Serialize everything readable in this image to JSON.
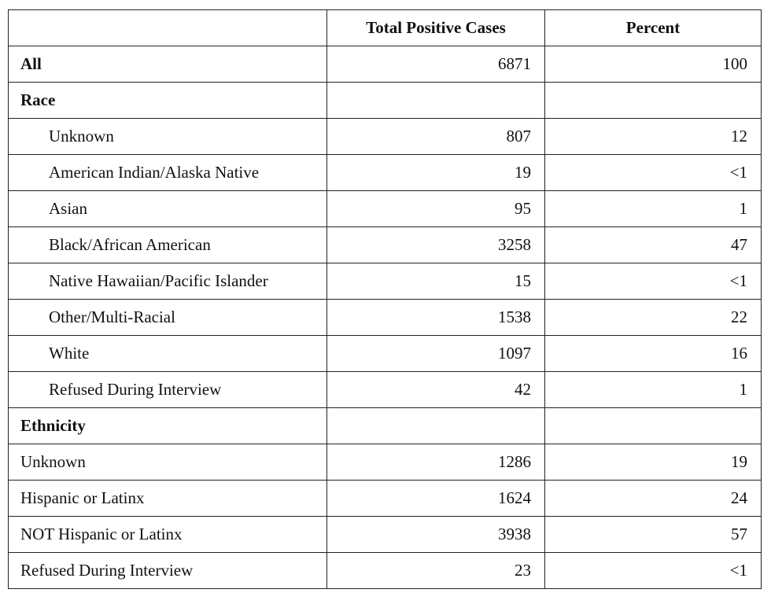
{
  "table": {
    "columns": [
      "Total Positive Cases",
      "Percent"
    ],
    "total": {
      "label": "All",
      "cases": 6871,
      "percent": 100
    },
    "groups": [
      {
        "title": "Race",
        "indented": true,
        "rows": [
          {
            "label": "Unknown",
            "cases": 807,
            "percent": 12
          },
          {
            "label": "American Indian/Alaska Native",
            "cases": 19,
            "percent": "<1"
          },
          {
            "label": "Asian",
            "cases": 95,
            "percent": 1
          },
          {
            "label": "Black/African American",
            "cases": 3258,
            "percent": 47
          },
          {
            "label": "Native Hawaiian/Pacific Islander",
            "cases": 15,
            "percent": "<1"
          },
          {
            "label": "Other/Multi-Racial",
            "cases": 1538,
            "percent": 22
          },
          {
            "label": "White",
            "cases": 1097,
            "percent": 16
          },
          {
            "label": "Refused During Interview",
            "cases": 42,
            "percent": 1
          }
        ]
      },
      {
        "title": "Ethnicity",
        "indented": false,
        "rows": [
          {
            "label": "Unknown",
            "cases": 1286,
            "percent": 19
          },
          {
            "label": "Hispanic or Latinx",
            "cases": 1624,
            "percent": 24
          },
          {
            "label": "NOT Hispanic or Latinx",
            "cases": 3938,
            "percent": 57
          },
          {
            "label": "Refused During Interview",
            "cases": 23,
            "percent": "<1"
          }
        ]
      }
    ]
  }
}
